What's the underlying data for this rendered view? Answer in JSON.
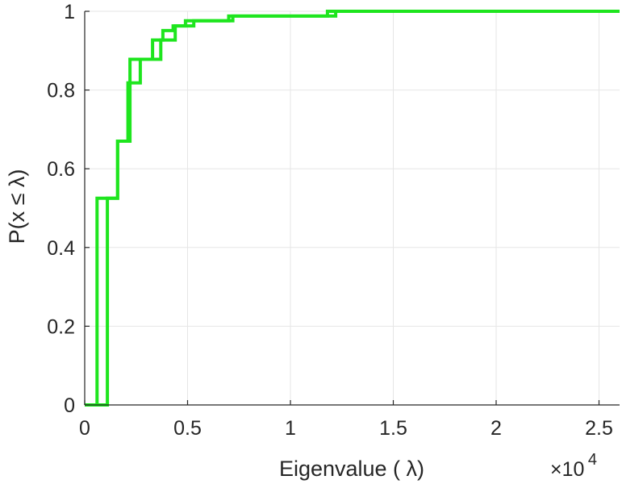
{
  "chart_data": {
    "type": "line",
    "title": "",
    "xlabel": "Eigenvalue (   λ)",
    "ylabel": "P(x ≤ λ)",
    "x_exponent_base": "×10",
    "x_exponent_power": "4",
    "xlim": [
      0,
      26000
    ],
    "ylim": [
      0,
      1
    ],
    "x_ticks": [
      0,
      5000,
      10000,
      15000,
      20000,
      25000
    ],
    "x_tick_labels": [
      "0",
      "0.5",
      "1",
      "1.5",
      "2",
      "2.5"
    ],
    "y_ticks": [
      0,
      0.2,
      0.4,
      0.6,
      0.8,
      1
    ],
    "y_tick_labels": [
      "0",
      "0.2",
      "0.4",
      "0.6",
      "0.8",
      "1"
    ],
    "grid": true,
    "step": true,
    "line_color": "#1ee51e",
    "series": [
      {
        "x": [
          0,
          600,
          600,
          1600,
          1600,
          2200,
          2200,
          3300,
          3300,
          3800,
          3800,
          4300,
          4300,
          4900,
          4900,
          7000,
          7000,
          11800,
          11800,
          26000
        ],
        "y": [
          0,
          0,
          0.525,
          0.525,
          0.67,
          0.67,
          0.878,
          0.878,
          0.927,
          0.927,
          0.951,
          0.951,
          0.963,
          0.963,
          0.976,
          0.976,
          0.988,
          0.988,
          1,
          1
        ]
      },
      {
        "x": [
          0,
          1100,
          1100,
          1600,
          1600,
          2100,
          2100,
          2700,
          2700,
          3700,
          3700,
          4400,
          4400,
          5300,
          5300,
          7200,
          7200,
          12200,
          12200,
          26000
        ],
        "y": [
          0,
          0,
          0.525,
          0.525,
          0.67,
          0.67,
          0.818,
          0.818,
          0.878,
          0.878,
          0.927,
          0.927,
          0.963,
          0.963,
          0.976,
          0.976,
          0.988,
          0.988,
          1,
          1
        ]
      }
    ]
  }
}
